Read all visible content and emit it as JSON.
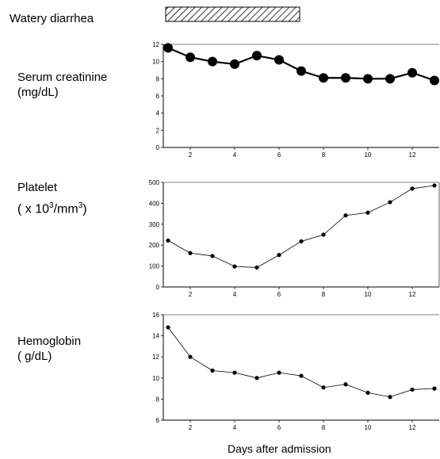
{
  "labels": {
    "diarrhea": "Watery diarrhea",
    "creatinine_line1": "Serum creatinine",
    "creatinine_line2": "(mg/dL)",
    "platelet_line1": "Platelet",
    "platelet_line2_pre": "( x 10",
    "platelet_line2_sup1": "3",
    "platelet_line2_mid": "/mm",
    "platelet_line2_sup2": "3",
    "platelet_line2_post": ")",
    "hemoglobin_line1": "Hemoglobin",
    "hemoglobin_line2": "( g/dL)",
    "xlabel": "Days after admission"
  },
  "colors": {
    "line": "#000000",
    "hatch": "#000000",
    "axis": "#000000"
  },
  "chart_data": [
    {
      "type": "line",
      "name": "creatinine",
      "x": [
        1,
        2,
        3,
        4,
        5,
        6,
        7,
        8,
        9,
        10,
        11,
        12,
        13
      ],
      "values": [
        11.6,
        10.5,
        10.0,
        9.7,
        10.7,
        10.2,
        8.9,
        8.1,
        8.1,
        8.0,
        8.0,
        8.7,
        7.8
      ],
      "ylim": [
        0,
        12
      ],
      "yticks": [
        0,
        2,
        4,
        6,
        8,
        10,
        12
      ],
      "xlim": [
        1,
        13
      ],
      "xticks": [
        2,
        4,
        6,
        8,
        10,
        12
      ],
      "marker": "large"
    },
    {
      "type": "line",
      "name": "platelet",
      "x": [
        1,
        2,
        3,
        4,
        5,
        6,
        7,
        8,
        9,
        10,
        11,
        12,
        13
      ],
      "values": [
        222,
        162,
        148,
        98,
        93,
        153,
        218,
        250,
        342,
        355,
        405,
        470,
        485
      ],
      "ylim": [
        0,
        500
      ],
      "yticks": [
        0,
        100,
        200,
        300,
        400,
        500
      ],
      "xlim": [
        1,
        13
      ],
      "xticks": [
        2,
        4,
        6,
        8,
        10,
        12
      ],
      "marker": "small"
    },
    {
      "type": "line",
      "name": "hemoglobin",
      "x": [
        1,
        2,
        3,
        4,
        5,
        6,
        7,
        8,
        9,
        10,
        11,
        12,
        13
      ],
      "values": [
        14.8,
        12.0,
        10.7,
        10.5,
        10.0,
        10.5,
        10.2,
        9.1,
        9.4,
        8.6,
        8.2,
        8.9,
        9.0
      ],
      "ylim": [
        6,
        16
      ],
      "yticks": [
        6,
        8,
        10,
        12,
        14,
        16
      ],
      "xlim": [
        1,
        13
      ],
      "xticks": [
        2,
        4,
        6,
        8,
        10,
        12
      ],
      "marker": "small"
    }
  ],
  "diarrhea_bar": {
    "start_day": 1,
    "end_day": 6
  }
}
